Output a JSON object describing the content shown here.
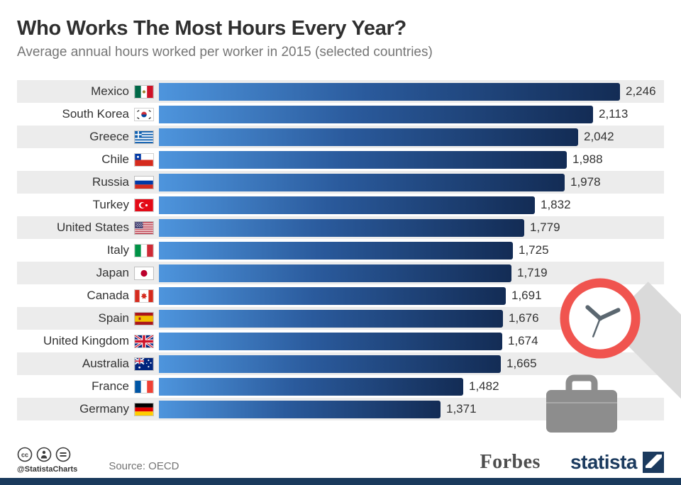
{
  "header": {
    "title": "Who Works The Most Hours Every Year?",
    "subtitle": "Average annual hours worked per worker in 2015 (selected countries)"
  },
  "chart_data": {
    "type": "bar",
    "orientation": "horizontal",
    "title": "Who Works The Most Hours Every Year?",
    "subtitle": "Average annual hours worked per worker in 2015 (selected countries)",
    "xlabel": "",
    "ylabel": "",
    "xlim": [
      0,
      2246
    ],
    "grid": false,
    "legend": false,
    "categories": [
      "Mexico",
      "South Korea",
      "Greece",
      "Chile",
      "Russia",
      "Turkey",
      "United States",
      "Italy",
      "Japan",
      "Canada",
      "Spain",
      "United Kingdom",
      "Australia",
      "France",
      "Germany"
    ],
    "values": [
      2246,
      2113,
      2042,
      1988,
      1978,
      1832,
      1779,
      1725,
      1719,
      1691,
      1676,
      1674,
      1665,
      1482,
      1371
    ],
    "value_labels": [
      "2,246",
      "2,113",
      "2,042",
      "1,988",
      "1,978",
      "1,832",
      "1,779",
      "1,725",
      "1,719",
      "1,691",
      "1,676",
      "1,674",
      "1,665",
      "1,482",
      "1,371"
    ],
    "bar_gradient": [
      "#4e95dd",
      "#132c55"
    ],
    "stripe_color": "#ececec"
  },
  "footer": {
    "license_handle": "@StatistaCharts",
    "source": "Source: OECD",
    "forbes_logo_text": "Forbes",
    "statista_logo_text": "statista"
  },
  "decorations": {
    "clock_icon_color": "#f0544f",
    "briefcase_icon_color": "#8d8d8d",
    "bottom_bar_color": "#1a3a5c"
  }
}
